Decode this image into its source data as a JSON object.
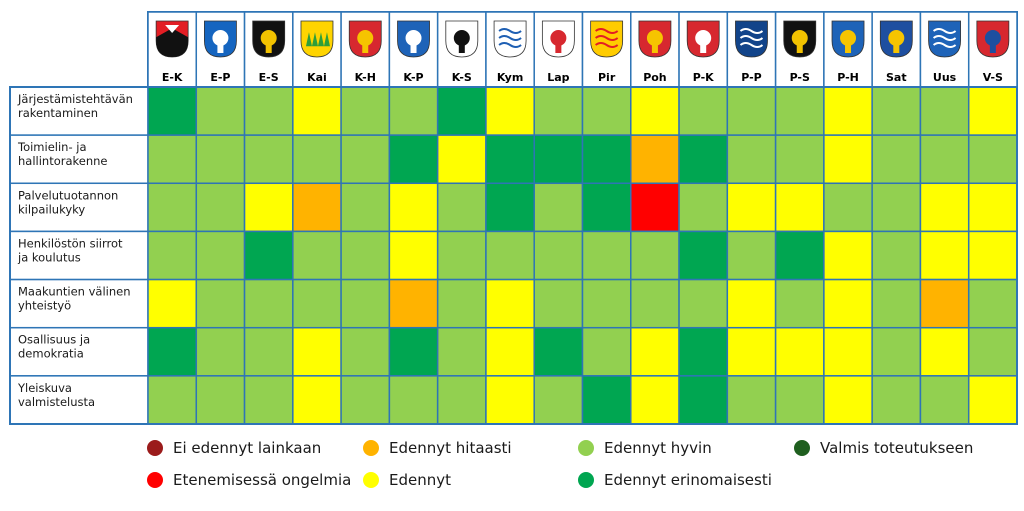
{
  "chart_data": {
    "type": "heatmap",
    "title": "",
    "regions": [
      {
        "code": "E-K",
        "crest": "shield-two-color-red-white"
      },
      {
        "code": "E-P",
        "crest": "shield-blue-white-fish"
      },
      {
        "code": "E-S",
        "crest": "shield-black-gold-crossbow"
      },
      {
        "code": "Kai",
        "crest": "shield-yellow-green-spruces"
      },
      {
        "code": "K-H",
        "crest": "shield-red-gold-lion"
      },
      {
        "code": "K-P",
        "crest": "shield-blue-white-flowers"
      },
      {
        "code": "K-S",
        "crest": "shield-white-black-bird"
      },
      {
        "code": "Kym",
        "crest": "shield-white-blue-net"
      },
      {
        "code": "Lap",
        "crest": "shield-white-red-figure"
      },
      {
        "code": "Pir",
        "crest": "shield-gold-red-waves"
      },
      {
        "code": "Poh",
        "crest": "shield-red-gold-bands"
      },
      {
        "code": "P-K",
        "crest": "shield-red-white-figure"
      },
      {
        "code": "P-P",
        "crest": "shield-blue-white-waves"
      },
      {
        "code": "P-S",
        "crest": "shield-black-gold-crossbow"
      },
      {
        "code": "P-H",
        "crest": "shield-blue-gold-mermaid"
      },
      {
        "code": "Sat",
        "crest": "shield-blue-gold-bear"
      },
      {
        "code": "Uus",
        "crest": "shield-blue-white-wave"
      },
      {
        "code": "V-S",
        "crest": "shield-red-blue-crown"
      }
    ],
    "rows": [
      "Järjestämistehtävän rakentaminen",
      "Toimielin- ja hallintorakenne",
      "Palvelutuotannon kilpailukyky",
      "Henkilöstön siirrot ja koulutus",
      "Maakuntien välinen yhteistyö",
      "Osallisuus ja demokratia",
      "Yleiskuva valmistelusta"
    ],
    "values": [
      [
        4,
        3,
        3,
        2,
        3,
        3,
        4,
        2,
        3,
        3,
        2,
        3,
        3,
        3,
        2,
        3,
        3,
        2
      ],
      [
        3,
        3,
        3,
        3,
        3,
        4,
        2,
        4,
        4,
        4,
        1,
        4,
        3,
        3,
        2,
        3,
        3,
        3
      ],
      [
        3,
        3,
        2,
        1,
        3,
        2,
        3,
        4,
        3,
        4,
        0,
        3,
        2,
        2,
        3,
        3,
        2,
        2
      ],
      [
        3,
        3,
        4,
        3,
        3,
        2,
        3,
        3,
        3,
        3,
        3,
        4,
        3,
        4,
        2,
        3,
        2,
        2
      ],
      [
        2,
        3,
        3,
        3,
        3,
        1,
        3,
        2,
        3,
        3,
        3,
        3,
        2,
        3,
        2,
        3,
        1,
        3
      ],
      [
        4,
        3,
        3,
        2,
        3,
        4,
        3,
        2,
        4,
        3,
        2,
        4,
        2,
        2,
        2,
        3,
        2,
        3
      ],
      [
        3,
        3,
        3,
        2,
        3,
        3,
        3,
        2,
        3,
        4,
        2,
        4,
        3,
        3,
        2,
        3,
        3,
        2
      ]
    ],
    "scale": [
      {
        "level": -1,
        "label": "Ei edennyt lainkaan",
        "color": "#9b1b1b"
      },
      {
        "level": 0,
        "label": "Etenemisessä ongelmia",
        "color": "#ff0000"
      },
      {
        "level": 1,
        "label": "Edennyt hitaasti",
        "color": "#ffb300"
      },
      {
        "level": 2,
        "label": "Edennyt",
        "color": "#ffff00"
      },
      {
        "level": 3,
        "label": "Edennyt hyvin",
        "color": "#92d050"
      },
      {
        "level": 4,
        "label": "Edennyt erinomaisesti",
        "color": "#00a651"
      },
      {
        "level": 5,
        "label": "Valmis toteutukseen",
        "color": "#1f5f1f"
      }
    ]
  },
  "colors": {
    "grid_border": "#2e75b6",
    "header_text": "#000000"
  }
}
